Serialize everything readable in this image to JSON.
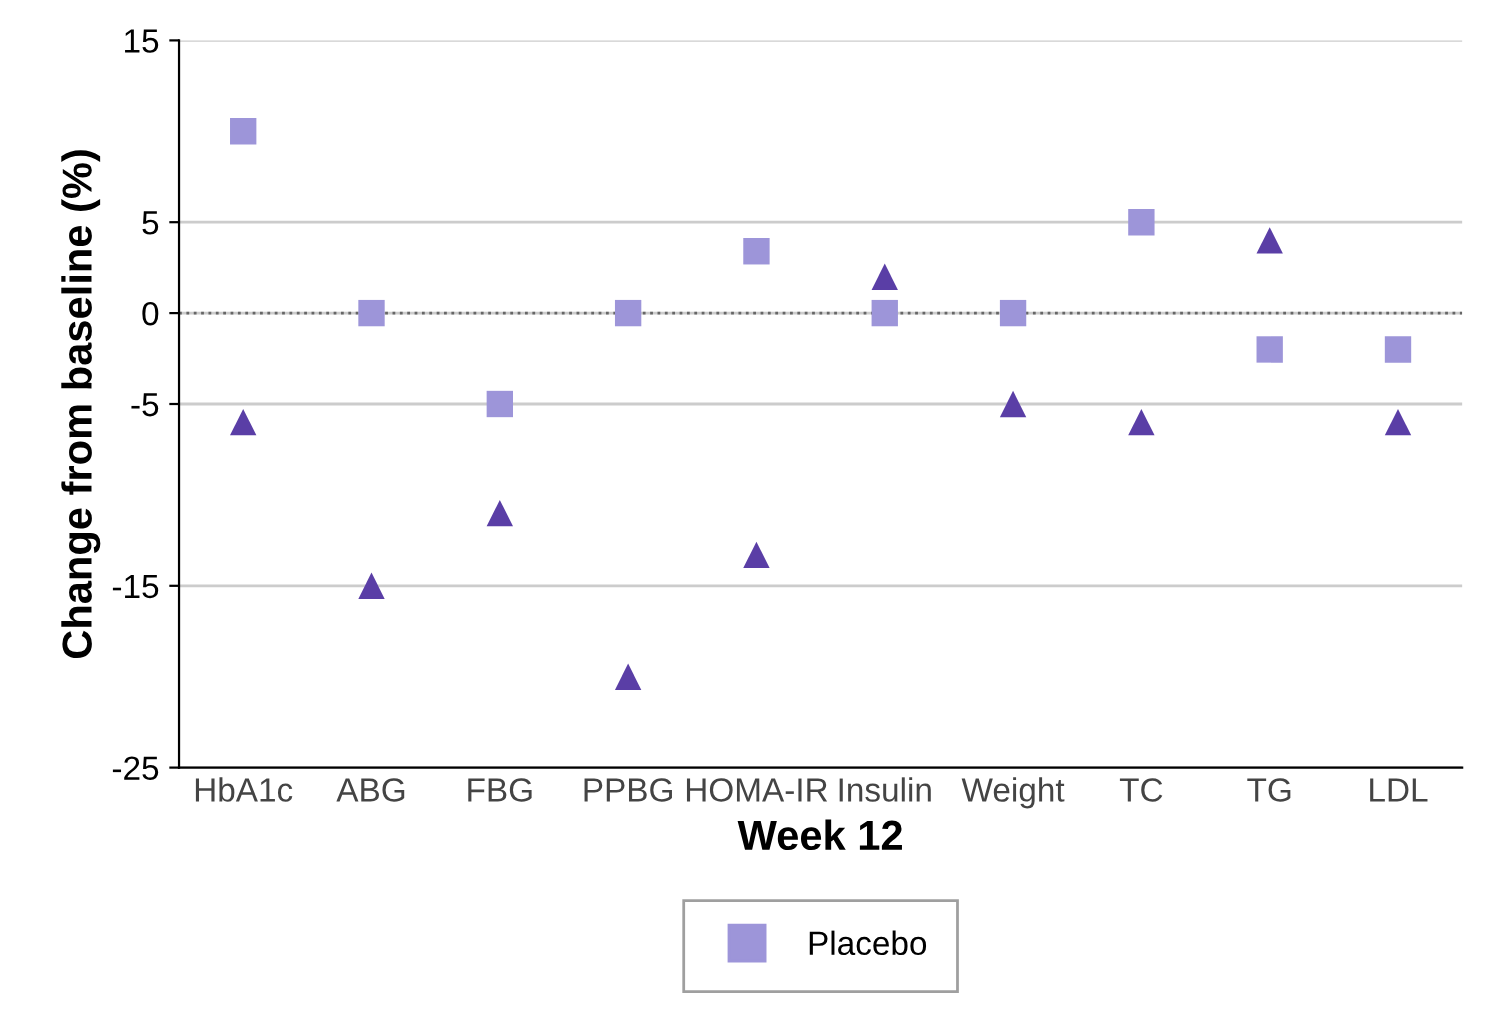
{
  "chart_data": {
    "type": "scatter",
    "xlabel": "Week 12",
    "ylabel": "Change from baseline (%)",
    "categories": [
      "HbA1c",
      "ABG",
      "FBG",
      "PPBG",
      "HOMA-IR",
      "Insulin",
      "Weight",
      "TC",
      "TG",
      "LDL"
    ],
    "series": [
      {
        "name": "Placebo",
        "color": "#9d95d9",
        "marker": "square",
        "values": [
          10,
          0,
          -5,
          0,
          3.4,
          0,
          0,
          5,
          -2,
          -2
        ]
      },
      {
        "color": "#5a3ea6",
        "marker": "triangle",
        "values": [
          -6,
          -15,
          -11,
          -20,
          -13.3,
          2,
          -5,
          -6,
          4,
          -6
        ]
      }
    ],
    "ylim": [
      -25,
      15
    ],
    "yticks": [
      -25,
      -15,
      -5,
      0,
      5,
      15
    ],
    "grid": "y",
    "ref_lines": [
      {
        "axis": "y",
        "value": 0,
        "line_style": "dotted",
        "color": "#666666"
      }
    ],
    "legend": "bottom"
  }
}
